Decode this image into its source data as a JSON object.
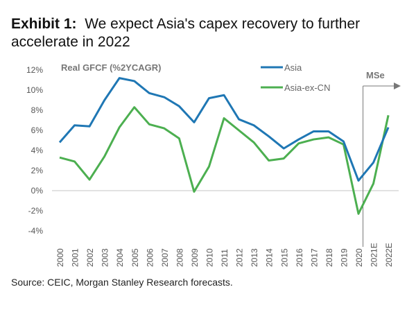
{
  "exhibit_label": "Exhibit 1:",
  "title": "We expect Asia's capex recovery to further accelerate in 2022",
  "source": "Source: CEIC, Morgan Stanley Research forecasts.",
  "chart_data": {
    "type": "line",
    "title": "Real GFCF (%2YCAGR)",
    "categories": [
      "2000",
      "2001",
      "2002",
      "2003",
      "2004",
      "2005",
      "2006",
      "2007",
      "2008",
      "2009",
      "2010",
      "2011",
      "2012",
      "2013",
      "2014",
      "2015",
      "2016",
      "2017",
      "2018",
      "2019",
      "2020",
      "2021E",
      "2022E"
    ],
    "series": [
      {
        "name": "Asia",
        "color": "#1f77b4",
        "values": [
          4.8,
          6.5,
          6.4,
          9.0,
          11.2,
          10.9,
          9.7,
          9.3,
          8.4,
          6.8,
          9.2,
          9.5,
          7.1,
          6.5,
          5.4,
          4.2,
          5.1,
          5.9,
          5.9,
          4.9,
          1.0,
          2.8,
          6.3
        ]
      },
      {
        "name": "Asia-ex-CN",
        "color": "#4caf50",
        "values": [
          3.3,
          2.9,
          1.1,
          3.4,
          6.3,
          8.3,
          6.6,
          6.2,
          5.2,
          -0.1,
          2.4,
          7.2,
          6.0,
          4.8,
          3.0,
          3.2,
          4.7,
          5.1,
          5.3,
          4.6,
          -2.3,
          0.7,
          7.5
        ]
      }
    ],
    "yticks": [
      "12%",
      "10%",
      "8%",
      "6%",
      "4%",
      "2%",
      "0%",
      "-2%",
      "-4%"
    ],
    "ylim": [
      -4,
      12
    ],
    "legend": "top-right",
    "annotation": "MSe",
    "forecast_start": "2021E"
  }
}
